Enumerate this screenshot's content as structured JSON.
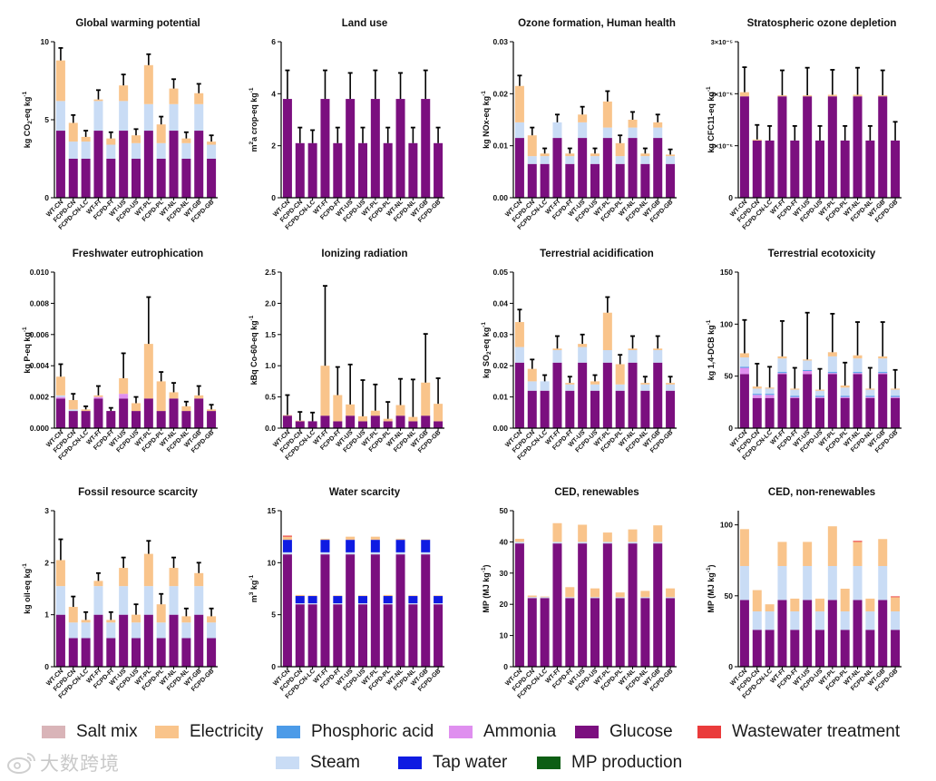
{
  "categories": [
    "WT-CN",
    "FCPD-CN",
    "FCPD-CN-LC",
    "WT-FI",
    "FCPD-FI",
    "WT-US",
    "FCPD-US",
    "WT-PL",
    "FCPD-PL",
    "WT-NL",
    "FCPD-NL",
    "WT-GB",
    "FCPD-GB"
  ],
  "components": [
    {
      "key": "glucose",
      "name": "Glucose",
      "color": "#7b0f7f"
    },
    {
      "key": "steam",
      "name": "Steam",
      "color": "#c9dcf5"
    },
    {
      "key": "electricity",
      "name": "Electricity",
      "color": "#f9c48b"
    },
    {
      "key": "salt",
      "name": "Salt mix",
      "color": "#d9b4b8"
    },
    {
      "key": "phosphoric",
      "name": "Phosphoric acid",
      "color": "#4c9be8"
    },
    {
      "key": "ammonia",
      "name": "Ammonia",
      "color": "#df8fef"
    },
    {
      "key": "tapwater",
      "name": "Tap water",
      "color": "#0f1be2"
    },
    {
      "key": "mp",
      "name": "MP production",
      "color": "#0d5e14"
    },
    {
      "key": "wastewater",
      "name": "Wastewater treatment",
      "color": "#ea3b3b"
    }
  ],
  "legend": [
    {
      "name": "Salt mix",
      "color": "#d9b4b8"
    },
    {
      "name": "Electricity",
      "color": "#f9c48b"
    },
    {
      "name": "Phosphoric acid",
      "color": "#4c9be8"
    },
    {
      "name": "Ammonia",
      "color": "#df8fef"
    },
    {
      "name": "Glucose",
      "color": "#7b0f7f"
    },
    {
      "name": "Wastewater treatment",
      "color": "#ea3b3b"
    },
    {
      "name": "Steam",
      "color": "#c9dcf5"
    },
    {
      "name": "Tap water",
      "color": "#0f1be2"
    },
    {
      "name": "MP production",
      "color": "#0d5e14"
    }
  ],
  "watermark": {
    "text": "大数跨境"
  },
  "chart_data": [
    {
      "type": "bar",
      "stacked": true,
      "title": "Global warming potential",
      "ylabel": "kg CO2-eq kg-1",
      "ylim": [
        0,
        10
      ],
      "yticks": [
        "0",
        "5",
        "10"
      ],
      "series": [
        {
          "key": "glucose",
          "values": [
            4.3,
            2.5,
            2.5,
            4.3,
            2.5,
            4.3,
            2.5,
            4.3,
            2.5,
            4.3,
            2.5,
            4.3,
            2.5
          ]
        },
        {
          "key": "steam",
          "values": [
            1.9,
            1.1,
            1.1,
            1.9,
            0.9,
            1.9,
            1.0,
            1.7,
            1.0,
            1.7,
            1.0,
            1.7,
            0.9
          ]
        },
        {
          "key": "electricity",
          "values": [
            2.6,
            1.2,
            0.3,
            0.1,
            0.4,
            1.0,
            0.5,
            2.5,
            1.2,
            1.0,
            0.3,
            0.7,
            0.2
          ]
        }
      ],
      "error": [
        0.8,
        0.5,
        0.4,
        0.6,
        0.4,
        0.7,
        0.4,
        0.7,
        0.5,
        0.6,
        0.4,
        0.6,
        0.4
      ]
    },
    {
      "type": "bar",
      "stacked": true,
      "title": "Land use",
      "ylabel": "m2a crop-eq kg-1",
      "ylim": [
        0,
        6
      ],
      "yticks": [
        "0",
        "2",
        "4",
        "6"
      ],
      "series": [
        {
          "key": "glucose",
          "values": [
            3.8,
            2.1,
            2.1,
            3.8,
            2.1,
            3.8,
            2.1,
            3.8,
            2.1,
            3.8,
            2.1,
            3.8,
            2.1
          ]
        }
      ],
      "error": [
        1.1,
        0.6,
        0.5,
        1.1,
        0.6,
        1.0,
        0.6,
        1.1,
        0.6,
        1.0,
        0.6,
        1.1,
        0.6
      ]
    },
    {
      "type": "bar",
      "stacked": true,
      "title": "Ozone formation, Human health",
      "ylabel": "kg NOx-eq kg-1",
      "ylim": [
        0,
        0.03
      ],
      "yticks": [
        "0.00",
        "0.01",
        "0.02",
        "0.03"
      ],
      "series": [
        {
          "key": "glucose",
          "values": [
            0.0115,
            0.0065,
            0.0065,
            0.0115,
            0.0065,
            0.0115,
            0.0065,
            0.0115,
            0.0065,
            0.0115,
            0.0065,
            0.0115,
            0.0065
          ]
        },
        {
          "key": "steam",
          "values": [
            0.003,
            0.0015,
            0.0015,
            0.003,
            0.0015,
            0.003,
            0.0015,
            0.002,
            0.0015,
            0.002,
            0.0015,
            0.002,
            0.0015
          ]
        },
        {
          "key": "electricity",
          "values": [
            0.007,
            0.004,
            0.0005,
            0,
            0.0005,
            0.0015,
            0.0005,
            0.005,
            0.0025,
            0.0015,
            0.0005,
            0.001,
            0.0003
          ]
        }
      ],
      "error": [
        0.002,
        0.0015,
        0.001,
        0.0015,
        0.001,
        0.0015,
        0.001,
        0.002,
        0.0015,
        0.0015,
        0.001,
        0.0015,
        0.001
      ]
    },
    {
      "type": "bar",
      "stacked": true,
      "title": "Stratospheric ozone depletion",
      "ylabel": "kg CFC11-eq kg-1",
      "ylim": [
        0,
        3e-05
      ],
      "yticks": [
        "0",
        "1×10⁻⁵",
        "2×10⁻⁵",
        "3×10⁻⁵"
      ],
      "series": [
        {
          "key": "glucose",
          "values": [
            1.95e-05,
            1.1e-05,
            1.1e-05,
            1.95e-05,
            1.1e-05,
            1.95e-05,
            1.1e-05,
            1.95e-05,
            1.1e-05,
            1.95e-05,
            1.1e-05,
            1.95e-05,
            1.1e-05
          ]
        },
        {
          "key": "electricity",
          "values": [
            8e-07,
            2e-07,
            0,
            2e-07,
            0,
            2e-07,
            0,
            3e-07,
            0,
            3e-07,
            0,
            2e-07,
            0
          ]
        }
      ],
      "error": [
        4.8e-06,
        2.8e-06,
        2.8e-06,
        4.8e-06,
        2.8e-06,
        5.3e-06,
        2.8e-06,
        4.8e-06,
        2.8e-06,
        5.2e-06,
        2.8e-06,
        4.8e-06,
        3.6e-06
      ]
    },
    {
      "type": "bar",
      "stacked": true,
      "title": "Freshwater eutrophication",
      "ylabel": "kg P-eq kg-1",
      "ylim": [
        0,
        0.01
      ],
      "yticks": [
        "0.000",
        "0.002",
        "0.004",
        "0.006",
        "0.008",
        "0.010"
      ],
      "series": [
        {
          "key": "glucose",
          "values": [
            0.0019,
            0.0011,
            0.0011,
            0.0019,
            0.0011,
            0.0019,
            0.0011,
            0.0019,
            0.0011,
            0.0019,
            0.0011,
            0.0019,
            0.0011
          ]
        },
        {
          "key": "ammonia",
          "values": [
            0.0001,
            0,
            0,
            0.0001,
            0,
            0.0003,
            0,
            0,
            0,
            0,
            0,
            0,
            0
          ]
        },
        {
          "key": "steam",
          "values": [
            0.0001,
            0.0001,
            0,
            0,
            0,
            0,
            0,
            0,
            0,
            0,
            0,
            0,
            0
          ]
        },
        {
          "key": "electricity",
          "values": [
            0.0012,
            0.0006,
            0.0001,
            0.0001,
            0,
            0.001,
            0.0005,
            0.0035,
            0.0019,
            0.0004,
            0.0003,
            0.0002,
            0.0001
          ]
        }
      ],
      "error": [
        0.0008,
        0.0004,
        0.0002,
        0.0006,
        0.0002,
        0.0016,
        0.0004,
        0.003,
        0.0006,
        0.0006,
        0.0003,
        0.0006,
        0.0003
      ]
    },
    {
      "type": "bar",
      "stacked": true,
      "title": "Ionizing radiation",
      "ylabel": "kBq Co-60-eq kg-1",
      "ylim": [
        0,
        2.5
      ],
      "yticks": [
        "0.0",
        "0.5",
        "1.0",
        "1.5",
        "2.0",
        "2.5"
      ],
      "series": [
        {
          "key": "glucose",
          "values": [
            0.2,
            0.11,
            0.11,
            0.2,
            0.11,
            0.2,
            0.11,
            0.2,
            0.11,
            0.2,
            0.11,
            0.2,
            0.11
          ]
        },
        {
          "key": "electricity",
          "values": [
            0.01,
            0.01,
            0,
            0.8,
            0.42,
            0.18,
            0.08,
            0.08,
            0.04,
            0.17,
            0.07,
            0.53,
            0.28
          ]
        }
      ],
      "error": [
        0.32,
        0.14,
        0.14,
        1.28,
        0.45,
        0.64,
        0.58,
        0.42,
        0.27,
        0.42,
        0.6,
        0.78,
        0.41
      ]
    },
    {
      "type": "bar",
      "stacked": true,
      "title": "Terrestrial acidification",
      "ylabel": "kg SO2-eq kg-1",
      "ylim": [
        0,
        0.05
      ],
      "yticks": [
        "0.00",
        "0.01",
        "0.02",
        "0.03",
        "0.04",
        "0.05"
      ],
      "series": [
        {
          "key": "glucose",
          "values": [
            0.021,
            0.012,
            0.012,
            0.021,
            0.012,
            0.021,
            0.012,
            0.021,
            0.012,
            0.021,
            0.012,
            0.021,
            0.012
          ]
        },
        {
          "key": "steam",
          "values": [
            0.005,
            0.003,
            0.003,
            0.004,
            0.002,
            0.005,
            0.002,
            0.004,
            0.002,
            0.004,
            0.002,
            0.004,
            0.002
          ]
        },
        {
          "key": "electricity",
          "values": [
            0.008,
            0.004,
            0,
            0.0005,
            0.0005,
            0.001,
            0.001,
            0.012,
            0.0065,
            0.0005,
            0.0005,
            0.0005,
            0.0005
          ]
        }
      ],
      "error": [
        0.004,
        0.003,
        0.002,
        0.004,
        0.002,
        0.003,
        0.002,
        0.005,
        0.003,
        0.004,
        0.002,
        0.004,
        0.002
      ]
    },
    {
      "type": "bar",
      "stacked": true,
      "title": "Terrestrial ecotoxicity",
      "ylabel": "kg 1,4-DCB kg-1",
      "ylim": [
        0,
        150
      ],
      "yticks": [
        "0",
        "50",
        "100",
        "150"
      ],
      "series": [
        {
          "key": "glucose",
          "values": [
            52,
            29,
            29,
            52,
            29,
            52,
            29,
            52,
            29,
            52,
            29,
            52,
            29
          ]
        },
        {
          "key": "ammonia",
          "values": [
            6,
            3,
            3,
            1,
            1,
            3,
            1,
            1,
            1,
            1,
            1,
            1,
            1
          ]
        },
        {
          "key": "phosphoric",
          "values": [
            1,
            1,
            1,
            1,
            1,
            1,
            1,
            1,
            1,
            1,
            1,
            1,
            1
          ]
        },
        {
          "key": "steam",
          "values": [
            9,
            5,
            5,
            13,
            6,
            9,
            5,
            15,
            8,
            13,
            6,
            13,
            6
          ]
        },
        {
          "key": "electricity",
          "values": [
            4,
            2,
            1,
            2,
            1,
            1,
            1,
            4,
            2,
            3,
            1,
            2,
            1
          ]
        }
      ],
      "error": [
        32,
        22,
        20,
        34,
        20,
        45,
        20,
        37,
        22,
        32,
        20,
        33,
        18
      ]
    },
    {
      "type": "bar",
      "stacked": true,
      "title": "Fossil resource scarcity",
      "ylabel": "kg oil-eq kg-1",
      "ylim": [
        0,
        3
      ],
      "yticks": [
        "0",
        "1",
        "2",
        "3"
      ],
      "series": [
        {
          "key": "glucose",
          "values": [
            1.0,
            0.55,
            0.55,
            1.0,
            0.55,
            1.0,
            0.55,
            1.0,
            0.55,
            1.0,
            0.55,
            1.0,
            0.55
          ]
        },
        {
          "key": "steam",
          "values": [
            0.55,
            0.3,
            0.3,
            0.55,
            0.3,
            0.55,
            0.3,
            0.55,
            0.3,
            0.55,
            0.3,
            0.55,
            0.3
          ]
        },
        {
          "key": "electricity",
          "values": [
            0.5,
            0.3,
            0.05,
            0.1,
            0.05,
            0.35,
            0.15,
            0.62,
            0.35,
            0.35,
            0.12,
            0.25,
            0.12
          ]
        }
      ],
      "error": [
        0.4,
        0.2,
        0.15,
        0.15,
        0.15,
        0.2,
        0.2,
        0.25,
        0.2,
        0.2,
        0.15,
        0.2,
        0.15
      ]
    },
    {
      "type": "bar",
      "stacked": true,
      "title": "Water scarcity",
      "ylabel": "m3 kg-1",
      "ylim": [
        0,
        15
      ],
      "yticks": [
        "0",
        "5",
        "10",
        "15"
      ],
      "series": [
        {
          "key": "glucose",
          "values": [
            10.8,
            6.0,
            6.0,
            10.8,
            6.0,
            10.8,
            6.0,
            10.8,
            6.0,
            10.8,
            6.0,
            10.8,
            6.0
          ]
        },
        {
          "key": "steam",
          "values": [
            0.2,
            0.1,
            0.1,
            0.2,
            0.1,
            0.2,
            0.1,
            0.2,
            0.1,
            0.2,
            0.1,
            0.2,
            0.1
          ]
        },
        {
          "key": "tapwater",
          "values": [
            1.2,
            0.7,
            0.7,
            1.2,
            0.7,
            1.2,
            0.7,
            1.2,
            0.7,
            1.2,
            0.7,
            1.2,
            0.7
          ]
        },
        {
          "key": "electricity",
          "values": [
            0.3,
            0.1,
            0.05,
            0.1,
            0.05,
            0.3,
            0.05,
            0.3,
            0.1,
            0.1,
            0.05,
            0.05,
            0.05
          ]
        },
        {
          "key": "wastewater",
          "values": [
            0.1,
            0,
            0,
            0,
            0,
            0,
            0,
            0,
            0,
            0,
            0,
            0,
            0
          ]
        }
      ],
      "error": [
        0,
        0,
        0,
        0,
        0,
        0,
        0,
        0,
        0,
        0,
        0,
        0,
        0
      ]
    },
    {
      "type": "bar",
      "stacked": true,
      "title": "CED, renewables",
      "ylabel": "MP (MJ kg-1)",
      "ylim": [
        0,
        50
      ],
      "yticks": [
        "0",
        "10",
        "20",
        "30",
        "40",
        "50"
      ],
      "series": [
        {
          "key": "glucose",
          "values": [
            39.5,
            22,
            22,
            39.5,
            22,
            39.5,
            22,
            39.5,
            22,
            39.5,
            22,
            39.5,
            22
          ]
        },
        {
          "key": "steam",
          "values": [
            0.5,
            0.3,
            0.3,
            0.5,
            0.3,
            0.5,
            0.3,
            0.5,
            0.3,
            0.5,
            0.3,
            0.5,
            0.3
          ]
        },
        {
          "key": "electricity",
          "values": [
            1.0,
            0.5,
            0.2,
            6.0,
            3.2,
            5.5,
            2.8,
            3.0,
            1.5,
            4.0,
            2.0,
            5.3,
            2.8
          ]
        }
      ],
      "error": [
        0,
        0,
        0,
        0,
        0,
        0,
        0,
        0,
        0,
        0,
        0,
        0,
        0
      ]
    },
    {
      "type": "bar",
      "stacked": true,
      "title": "CED, non-renewables",
      "ylabel": "MP (MJ kg-1)",
      "ylim": [
        0,
        110
      ],
      "yticks": [
        "0",
        "50",
        "100"
      ],
      "series": [
        {
          "key": "glucose",
          "values": [
            47,
            26,
            26,
            47,
            26,
            47,
            26,
            47,
            26,
            47,
            26,
            47,
            26
          ]
        },
        {
          "key": "steam",
          "values": [
            24,
            13,
            13,
            24,
            13,
            24,
            13,
            24,
            13,
            24,
            13,
            24,
            13
          ]
        },
        {
          "key": "electricity",
          "values": [
            26,
            15,
            5,
            17,
            9,
            17,
            9,
            28,
            16,
            17,
            9,
            19,
            10
          ]
        },
        {
          "key": "wastewater",
          "values": [
            0,
            0,
            0,
            0,
            0,
            0,
            0,
            0,
            0,
            0.7,
            0,
            0,
            0.6
          ]
        }
      ],
      "error": [
        0,
        0,
        0,
        0,
        0,
        0,
        0,
        0,
        0,
        0,
        0,
        0,
        0
      ]
    }
  ]
}
